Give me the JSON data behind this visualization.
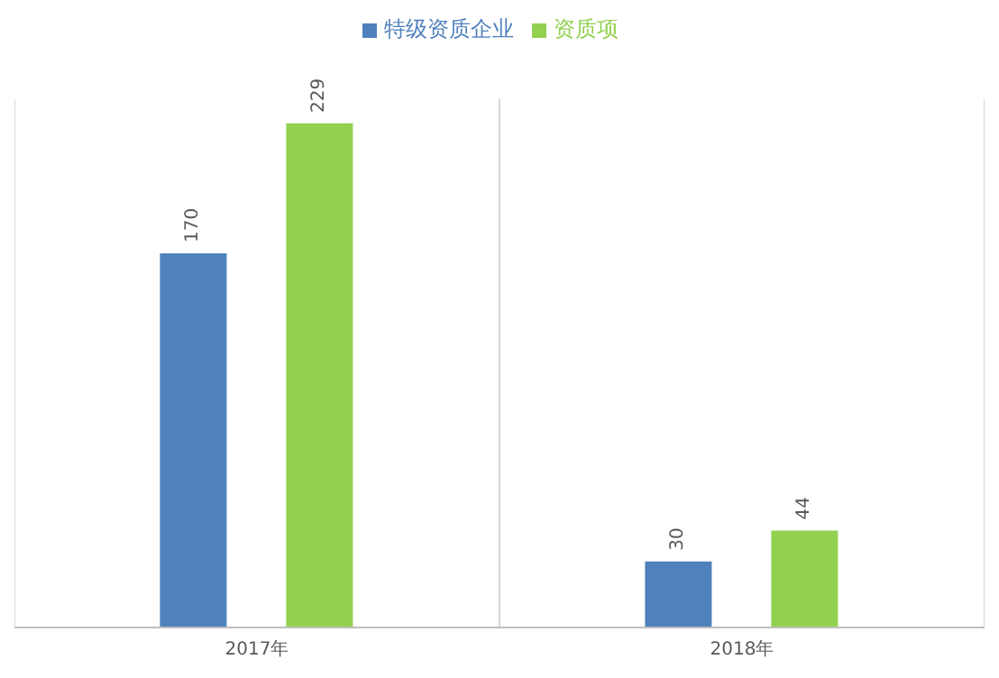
{
  "chart_data": {
    "type": "bar",
    "categories": [
      "2017年",
      "2018年"
    ],
    "series": [
      {
        "name": "特级资质企业",
        "color": "#4f81bd",
        "values": [
          170,
          30
        ]
      },
      {
        "name": "资质项",
        "color": "#92d050",
        "values": [
          229,
          44
        ]
      }
    ],
    "data_labels": true,
    "legend": "top",
    "grid": "x"
  }
}
